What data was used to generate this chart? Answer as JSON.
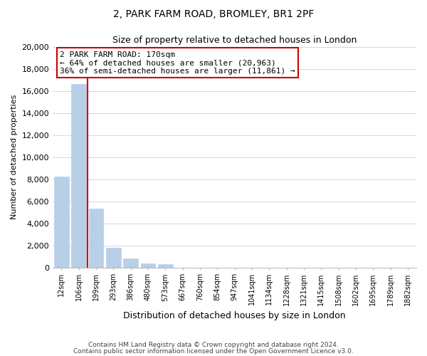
{
  "title": "2, PARK FARM ROAD, BROMLEY, BR1 2PF",
  "subtitle": "Size of property relative to detached houses in London",
  "xlabel": "Distribution of detached houses by size in London",
  "ylabel": "Number of detached properties",
  "bar_labels": [
    "12sqm",
    "106sqm",
    "199sqm",
    "293sqm",
    "386sqm",
    "480sqm",
    "573sqm",
    "667sqm",
    "760sqm",
    "854sqm",
    "947sqm",
    "1041sqm",
    "1134sqm",
    "1228sqm",
    "1321sqm",
    "1415sqm",
    "1508sqm",
    "1602sqm",
    "1695sqm",
    "1789sqm",
    "1882sqm"
  ],
  "bar_heights": [
    8200,
    16600,
    5300,
    1800,
    800,
    350,
    300,
    0,
    0,
    0,
    0,
    0,
    0,
    0,
    0,
    0,
    0,
    0,
    0,
    0,
    0
  ],
  "bar_color": "#b8cfe8",
  "bar_edge_color": "#b8cfe8",
  "annotation_box_color": "#ffffff",
  "annotation_box_edge": "#cc0000",
  "line_color": "#cc0000",
  "ylim": [
    0,
    20000
  ],
  "yticks": [
    0,
    2000,
    4000,
    6000,
    8000,
    10000,
    12000,
    14000,
    16000,
    18000,
    20000
  ],
  "footnote1": "Contains HM Land Registry data © Crown copyright and database right 2024.",
  "footnote2": "Contains public sector information licensed under the Open Government Licence v3.0.",
  "background_color": "#ffffff",
  "grid_color": "#ccd9e8",
  "annotation_line1": "2 PARK FARM ROAD: 170sqm",
  "annotation_line2": "← 64% of detached houses are smaller (20,963)",
  "annotation_line3": "36% of semi-detached houses are larger (11,861) →",
  "red_line_x": 1.5
}
